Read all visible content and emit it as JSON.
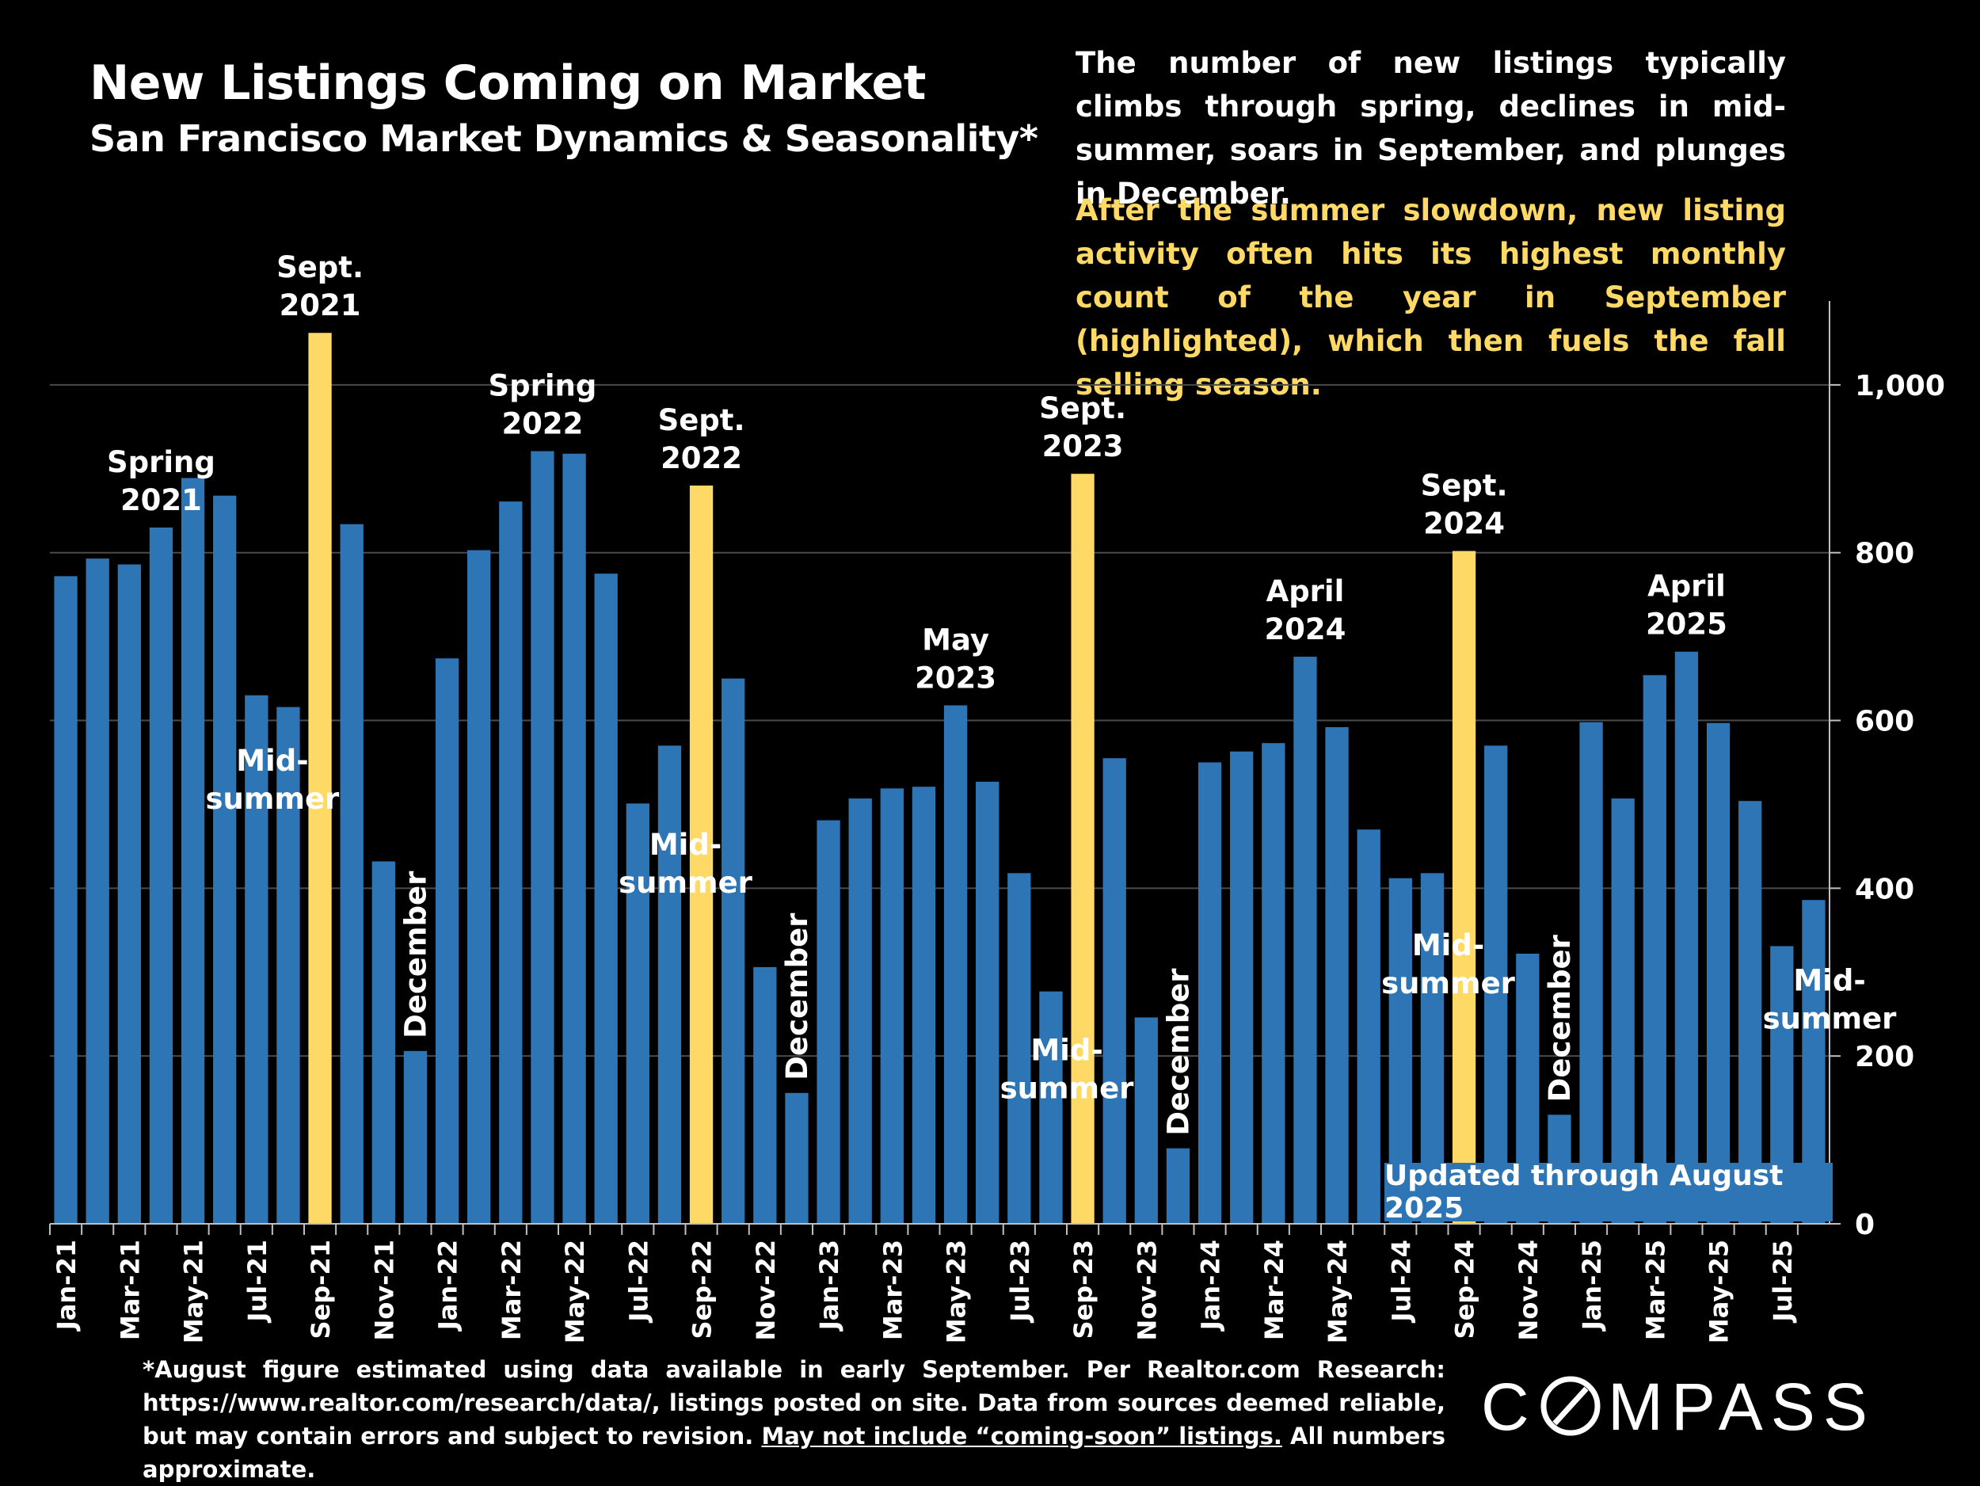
{
  "chart_data": {
    "type": "bar",
    "title": "New Listings Coming on Market",
    "subtitle": "San Francisco Market Dynamics & Seasonality*",
    "categories": [
      "Jan-21",
      "Feb-21",
      "Mar-21",
      "Apr-21",
      "May-21",
      "Jun-21",
      "Jul-21",
      "Aug-21",
      "Sep-21",
      "Oct-21",
      "Nov-21",
      "Dec-21",
      "Jan-22",
      "Feb-22",
      "Mar-22",
      "Apr-22",
      "May-22",
      "Jun-22",
      "Jul-22",
      "Aug-22",
      "Sep-22",
      "Oct-22",
      "Nov-22",
      "Dec-22",
      "Jan-23",
      "Feb-23",
      "Mar-23",
      "Apr-23",
      "May-23",
      "Jun-23",
      "Jul-23",
      "Aug-23",
      "Sep-23",
      "Oct-23",
      "Nov-23",
      "Dec-23",
      "Jan-24",
      "Feb-24",
      "Mar-24",
      "Apr-24",
      "May-24",
      "Jun-24",
      "Jul-24",
      "Aug-24",
      "Sep-24",
      "Oct-24",
      "Nov-24",
      "Dec-24",
      "Jan-25",
      "Feb-25",
      "Mar-25",
      "Apr-25",
      "May-25",
      "Jun-25",
      "Jul-25",
      "Aug-25"
    ],
    "tick_labels_shown": [
      "Jan-21",
      "Mar-21",
      "May-21",
      "Jul-21",
      "Sep-21",
      "Nov-21",
      "Jan-22",
      "Mar-22",
      "May-22",
      "Jul-22",
      "Sep-22",
      "Nov-22",
      "Jan-23",
      "Mar-23",
      "May-23",
      "Jul-23",
      "Sep-23",
      "Nov-23",
      "Jan-24",
      "Mar-24",
      "May-24",
      "Jul-24",
      "Sep-24",
      "Nov-24",
      "Jan-25",
      "Mar-25",
      "May-25",
      "Jul-25"
    ],
    "values": [
      772,
      793,
      786,
      830,
      889,
      868,
      630,
      616,
      1062,
      834,
      432,
      206,
      674,
      803,
      861,
      921,
      918,
      775,
      501,
      570,
      880,
      650,
      306,
      156,
      481,
      507,
      519,
      521,
      618,
      527,
      418,
      277,
      894,
      555,
      246,
      90,
      550,
      563,
      573,
      676,
      592,
      470,
      412,
      418,
      802,
      570,
      322,
      130,
      598,
      507,
      654,
      682,
      597,
      504,
      331,
      386
    ],
    "highlighted": [
      "Sep-21",
      "Sep-22",
      "Sep-23",
      "Sep-24"
    ],
    "colors": {
      "bar": "#2e75b6",
      "highlight": "#ffd966",
      "background": "#000000",
      "text": "#ffffff"
    },
    "y_axis": {
      "position": "right",
      "ylim": [
        0,
        1100
      ],
      "ticks": [
        0,
        200,
        400,
        600,
        800,
        1000
      ],
      "tick_labels": [
        "0",
        "200",
        "400",
        "600",
        "800",
        "1,000"
      ]
    },
    "grid": true,
    "annotations": [
      {
        "at": "Apr-21",
        "lines": [
          "Spring",
          "2021"
        ]
      },
      {
        "at": "Sep-21",
        "lines": [
          "Sept.",
          "2021"
        ]
      },
      {
        "at": "Jul-21",
        "lines": [
          "Mid-",
          "summer"
        ],
        "value": 540
      },
      {
        "at": "Dec-21",
        "lines": [
          "December"
        ],
        "rotated": true
      },
      {
        "at": "Apr-22",
        "lines": [
          "Spring",
          "2022"
        ]
      },
      {
        "at": "Sep-22",
        "lines": [
          "Sept.",
          "2022"
        ]
      },
      {
        "at": "Aug-22",
        "lines": [
          "Mid-",
          "summer"
        ],
        "value": 440
      },
      {
        "at": "Dec-22",
        "lines": [
          "December"
        ],
        "rotated": true
      },
      {
        "at": "May-23",
        "lines": [
          "May",
          "2023"
        ]
      },
      {
        "at": "Sep-23",
        "lines": [
          "Sept.",
          "2023"
        ]
      },
      {
        "at": "Aug-23",
        "lines": [
          "Mid-",
          "summer"
        ],
        "value": 195
      },
      {
        "at": "Dec-23",
        "lines": [
          "December"
        ],
        "rotated": true
      },
      {
        "at": "Apr-24",
        "lines": [
          "April",
          "2024"
        ]
      },
      {
        "at": "Sep-24",
        "lines": [
          "Sept.",
          "2024"
        ]
      },
      {
        "at": "Aug-24",
        "lines": [
          "Mid-",
          "summer"
        ],
        "value": 320
      },
      {
        "at": "Dec-24",
        "lines": [
          "December"
        ],
        "rotated": true
      },
      {
        "at": "Apr-25",
        "lines": [
          "April",
          "2025"
        ]
      },
      {
        "at": "Aug-25",
        "lines": [
          "Mid-",
          "summer"
        ],
        "value": 278
      }
    ]
  },
  "notes": {
    "general": "The number of new listings typically climbs through spring, declines in mid-summer, soars in September, and plunges in December.",
    "highlight": "After the summer slowdown, new listing activity often hits its highest monthly count of the year in September (highlighted), which then fuels the fall selling season."
  },
  "updated_badge": "Updated through August 2025",
  "footnote": {
    "main": "*August figure estimated using data available in early September. Per Realtor.com Research: https://www.realtor.com/research/data/, listings posted on site. Data from sources deemed reliable, but may contain errors and subject to revision.",
    "underlined": "May not include “coming-soon” listings.",
    "end": "All numbers approximate."
  },
  "logo": {
    "text_before": "C",
    "text_after": "MPASS"
  }
}
